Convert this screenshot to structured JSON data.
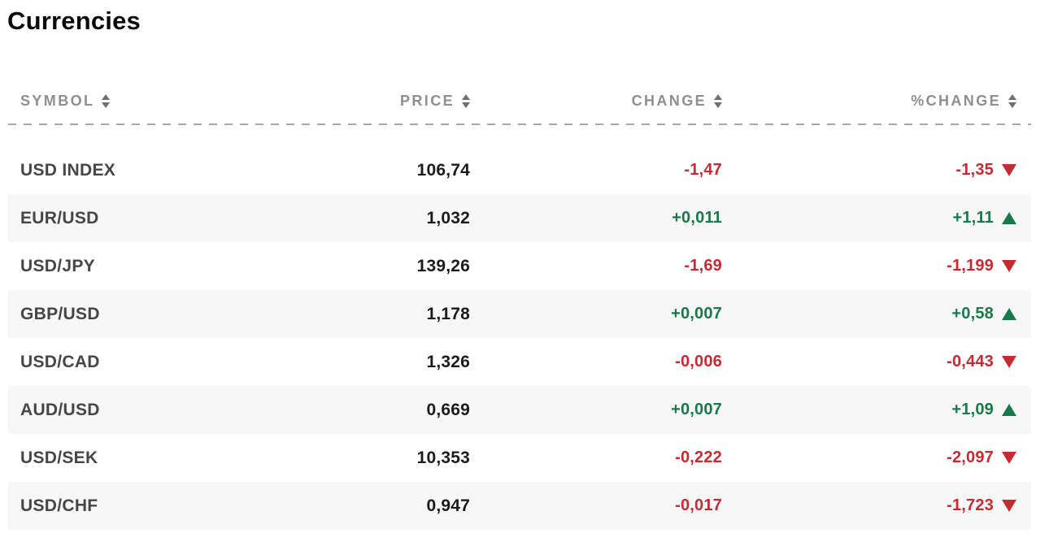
{
  "page": {
    "title": "Currencies"
  },
  "colors": {
    "positive": "#187a4a",
    "negative": "#c52b33",
    "header_text": "#8f8f8f",
    "symbol_text": "#464646",
    "price_text": "#1c1c1c",
    "alt_row_bg": "#f7f7f7",
    "divider": "#a6a6a6"
  },
  "table": {
    "columns": [
      {
        "key": "symbol",
        "label": "SYMBOL",
        "sortable": true
      },
      {
        "key": "price",
        "label": "PRICE",
        "sortable": true
      },
      {
        "key": "change",
        "label": "CHANGE",
        "sortable": true
      },
      {
        "key": "pct_change",
        "label": "%CHANGE",
        "sortable": true
      }
    ],
    "rows": [
      {
        "symbol": "USD INDEX",
        "price": "106,74",
        "change": "-1,47",
        "pct_change": "-1,35",
        "direction": "down"
      },
      {
        "symbol": "EUR/USD",
        "price": "1,032",
        "change": "+0,011",
        "pct_change": "+1,11",
        "direction": "up"
      },
      {
        "symbol": "USD/JPY",
        "price": "139,26",
        "change": "-1,69",
        "pct_change": "-1,199",
        "direction": "down"
      },
      {
        "symbol": "GBP/USD",
        "price": "1,178",
        "change": "+0,007",
        "pct_change": "+0,58",
        "direction": "up"
      },
      {
        "symbol": "USD/CAD",
        "price": "1,326",
        "change": "-0,006",
        "pct_change": "-0,443",
        "direction": "down"
      },
      {
        "symbol": "AUD/USD",
        "price": "0,669",
        "change": "+0,007",
        "pct_change": "+1,09",
        "direction": "up"
      },
      {
        "symbol": "USD/SEK",
        "price": "10,353",
        "change": "-0,222",
        "pct_change": "-2,097",
        "direction": "down"
      },
      {
        "symbol": "USD/CHF",
        "price": "0,947",
        "change": "-0,017",
        "pct_change": "-1,723",
        "direction": "down"
      }
    ]
  }
}
